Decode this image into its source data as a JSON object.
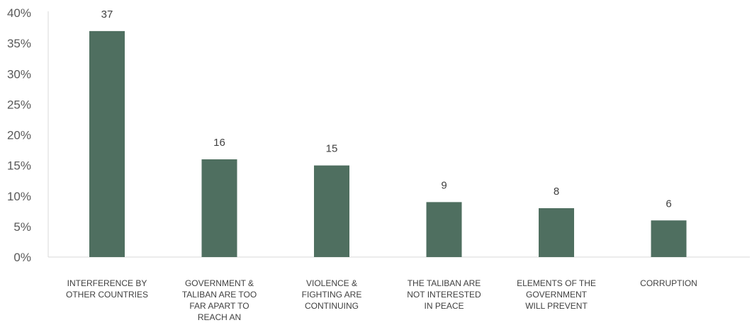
{
  "chart_data": {
    "type": "bar",
    "categories": [
      [
        "INTERFERENCE BY",
        "OTHER COUNTRIES"
      ],
      [
        "GOVERNMENT &",
        "TALIBAN ARE TOO",
        "FAR APART TO",
        "REACH AN"
      ],
      [
        "VIOLENCE &",
        "FIGHTING ARE",
        "CONTINUING"
      ],
      [
        "THE TALIBAN ARE",
        "NOT INTERESTED",
        "IN PEACE"
      ],
      [
        "ELEMENTS OF THE",
        "GOVERNMENT",
        "WILL PREVENT"
      ],
      [
        "CORRUPTION"
      ]
    ],
    "values": [
      37,
      16,
      15,
      9,
      8,
      6
    ],
    "data_labels": [
      "37",
      "16",
      "15",
      "9",
      "8",
      "6"
    ],
    "yticks": [
      "0%",
      "5%",
      "10%",
      "15%",
      "20%",
      "25%",
      "30%",
      "35%",
      "40%"
    ],
    "ylim": [
      0,
      40
    ],
    "grid": false,
    "bar_color": "#4f6f60",
    "axis_color": "#d9d9d9"
  }
}
